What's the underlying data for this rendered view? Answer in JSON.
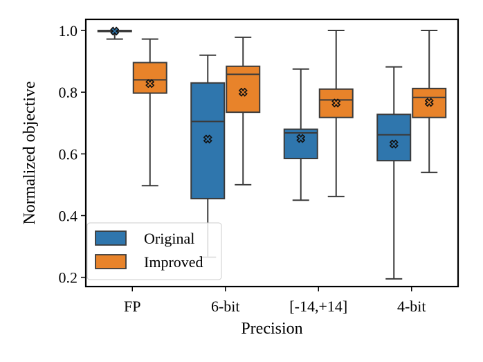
{
  "chart_data": {
    "type": "box",
    "title": "",
    "xlabel": "Precision",
    "ylabel": "Normalized objective",
    "ylim": [
      0.17,
      1.036
    ],
    "yticks": [
      0.2,
      0.4,
      0.6,
      0.8,
      1.0
    ],
    "ytick_labels": [
      "0.2",
      "0.4",
      "0.6",
      "0.8",
      "1.0"
    ],
    "categories": [
      "FP",
      "6-bit",
      "[-14,+14]",
      "4-bit"
    ],
    "legend_position": "lower-left",
    "series": [
      {
        "name": "Original",
        "color": "#2f76ad",
        "boxes": [
          {
            "whisker_low": 0.972,
            "q1": 0.997,
            "median": 0.999,
            "q3": 1.0,
            "whisker_high": 1.0,
            "mean": 0.998
          },
          {
            "whisker_low": 0.265,
            "q1": 0.455,
            "median": 0.705,
            "q3": 0.83,
            "whisker_high": 0.92,
            "mean": 0.648
          },
          {
            "whisker_low": 0.45,
            "q1": 0.585,
            "median": 0.668,
            "q3": 0.68,
            "whisker_high": 0.875,
            "mean": 0.65
          },
          {
            "whisker_low": 0.195,
            "q1": 0.578,
            "median": 0.662,
            "q3": 0.728,
            "whisker_high": 0.882,
            "mean": 0.632
          }
        ]
      },
      {
        "name": "Improved",
        "color": "#e8832a",
        "boxes": [
          {
            "whisker_low": 0.497,
            "q1": 0.797,
            "median": 0.84,
            "q3": 0.896,
            "whisker_high": 0.972,
            "mean": 0.828
          },
          {
            "whisker_low": 0.5,
            "q1": 0.735,
            "median": 0.858,
            "q3": 0.884,
            "whisker_high": 0.978,
            "mean": 0.8
          },
          {
            "whisker_low": 0.462,
            "q1": 0.718,
            "median": 0.775,
            "q3": 0.81,
            "whisker_high": 1.0,
            "mean": 0.765
          },
          {
            "whisker_low": 0.54,
            "q1": 0.718,
            "median": 0.783,
            "q3": 0.812,
            "whisker_high": 1.0,
            "mean": 0.767
          }
        ]
      }
    ]
  }
}
